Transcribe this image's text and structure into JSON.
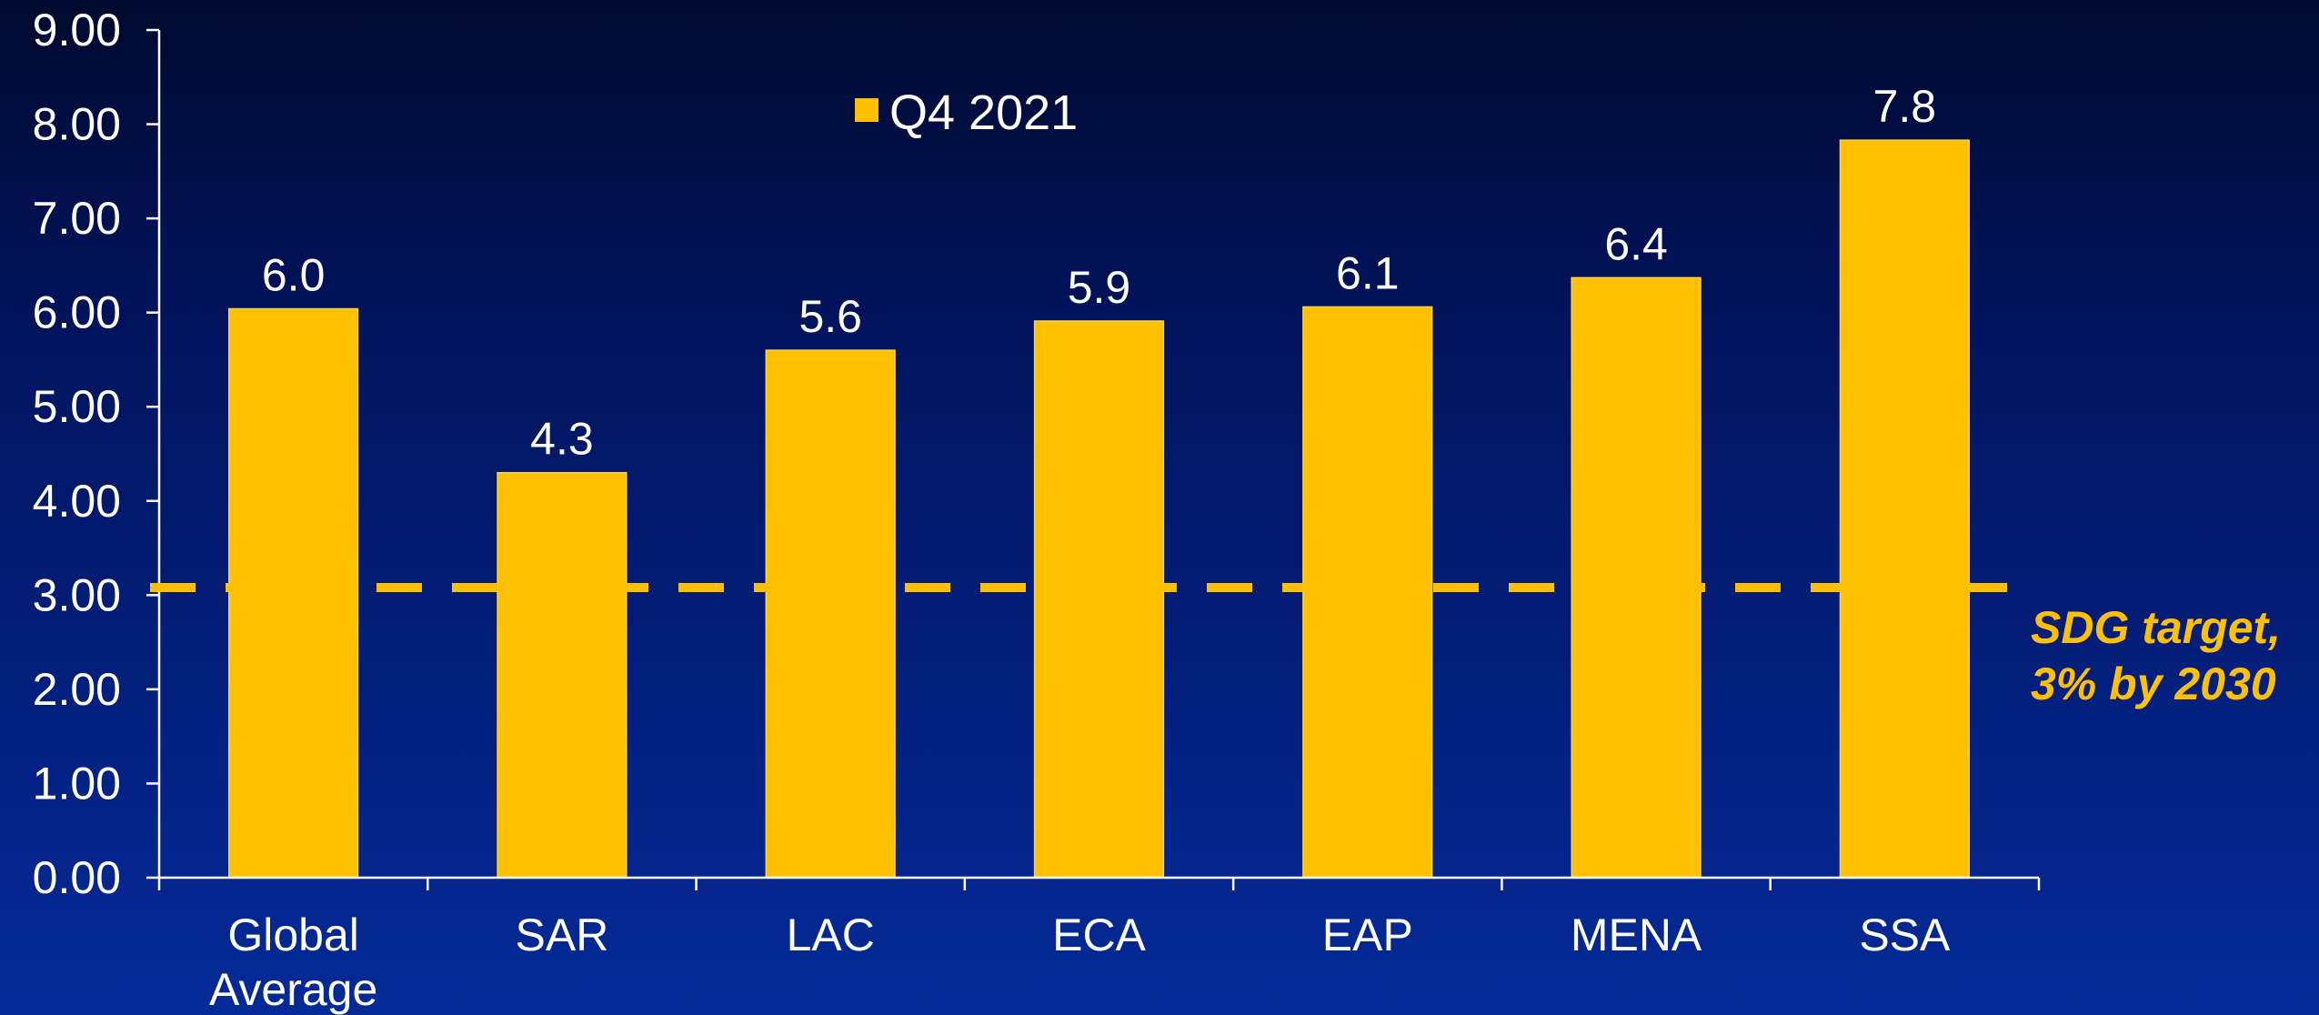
{
  "chart_data": {
    "type": "bar",
    "categories": [
      "Global Average",
      "SAR",
      "LAC",
      "ECA",
      "EAP",
      "MENA",
      "SSA"
    ],
    "series": [
      {
        "name": "Q4 2021",
        "values": [
          6.04,
          4.3,
          5.6,
          5.91,
          6.06,
          6.37,
          7.83
        ],
        "labels": [
          "6.0",
          "4.3",
          "5.6",
          "5.9",
          "6.1",
          "6.4",
          "7.8"
        ]
      }
    ],
    "ylim": [
      0,
      9
    ],
    "yticks": [
      "0.00",
      "1.00",
      "2.00",
      "3.00",
      "4.00",
      "5.00",
      "6.00",
      "7.00",
      "8.00",
      "9.00"
    ],
    "legend": {
      "label": "Q4 2021",
      "position": "top-center"
    },
    "reference_line": {
      "value": 3.08,
      "style": "dashed",
      "label_lines": [
        "SDG target,",
        "3% by 2030"
      ]
    },
    "title": "",
    "xlabel": "",
    "ylabel": "",
    "grid": false,
    "colors": {
      "bar": "#ffc000",
      "reference": "#ffc000",
      "axis": "#ffffff",
      "text": "#ffffff"
    }
  }
}
